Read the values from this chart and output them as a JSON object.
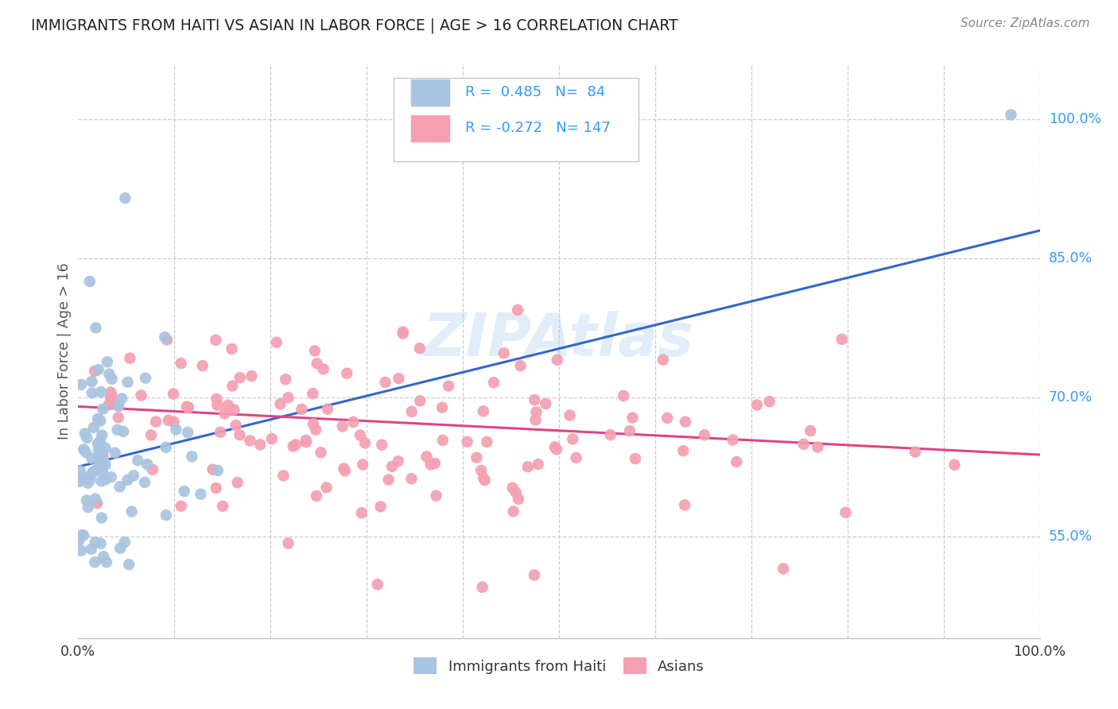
{
  "title": "IMMIGRANTS FROM HAITI VS ASIAN IN LABOR FORCE | AGE > 16 CORRELATION CHART",
  "source": "Source: ZipAtlas.com",
  "ylabel": "In Labor Force | Age > 16",
  "xlim": [
    0.0,
    1.0
  ],
  "ylim": [
    0.44,
    1.06
  ],
  "y_tick_labels": [
    "55.0%",
    "70.0%",
    "85.0%",
    "100.0%"
  ],
  "y_tick_values": [
    0.55,
    0.7,
    0.85,
    1.0
  ],
  "haiti_R": 0.485,
  "haiti_N": 84,
  "asian_R": -0.272,
  "asian_N": 147,
  "haiti_color": "#a8c4e0",
  "haiti_line_color": "#3366cc",
  "asian_color": "#f4a0b0",
  "asian_line_color": "#dd4488",
  "text_color": "#3399ff",
  "title_color": "#222222",
  "source_color": "#888888",
  "background_color": "#ffffff",
  "grid_color": "#cccccc",
  "haiti_line_start_y": 0.625,
  "haiti_line_end_y": 0.88,
  "asian_line_start_y": 0.69,
  "asian_line_end_y": 0.638,
  "watermark_color": "#aaccee",
  "watermark_alpha": 0.35
}
